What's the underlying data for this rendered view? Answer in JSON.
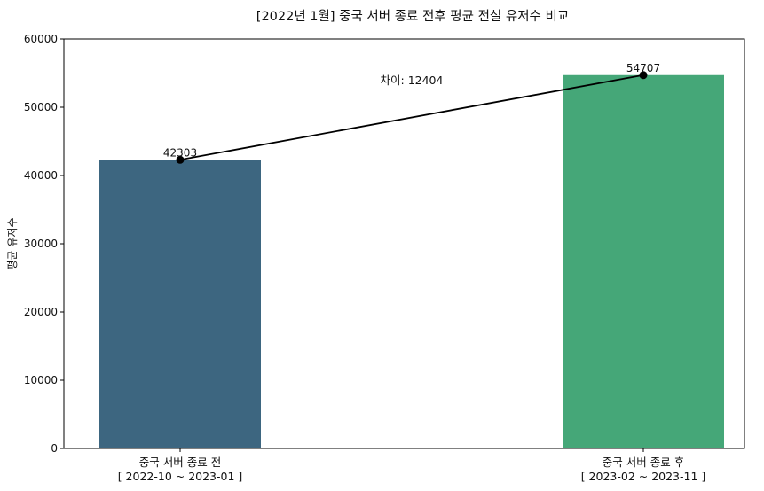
{
  "chart_data": {
    "type": "bar",
    "title": "[2022년 1월] 중국 서버 종료 전후 평균 전설 유저수 비교",
    "xlabel": "",
    "ylabel": "평균 유저수",
    "ylim": [
      0,
      60000
    ],
    "yticks": [
      0,
      10000,
      20000,
      30000,
      40000,
      50000,
      60000
    ],
    "categories": [
      [
        "중국 서버 종료 전",
        "[ 2022-10 ~ 2023-01 ]"
      ],
      [
        "중국 서버 종료 후",
        "[ 2023-02 ~ 2023-11 ]"
      ]
    ],
    "values": [
      42303,
      54707
    ],
    "bar_colors": [
      "#3d6680",
      "#45a778"
    ],
    "connector": {
      "color": "#000000",
      "marker": "circle"
    },
    "annotation": "차이: 12404",
    "grid": false,
    "legend": "none"
  }
}
